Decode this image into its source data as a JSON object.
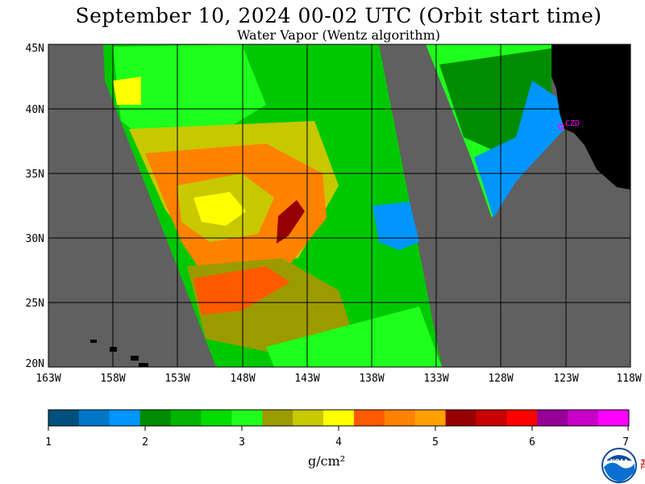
{
  "title": "September 10, 2024  00-02 UTC  (Orbit start time)",
  "subtitle": "Water Vapor (Wentz algorithm)",
  "latitude_labels": [
    "45N",
    "40N",
    "35N",
    "30N",
    "25N",
    "20N"
  ],
  "longitude_labels": [
    "163W",
    "158W",
    "153W",
    "148W",
    "143W",
    "138W",
    "133W",
    "128W",
    "123W",
    "118W"
  ],
  "station_label": "CZD",
  "colorbar": {
    "ticks": [
      "1",
      "2",
      "3",
      "4",
      "5",
      "6",
      "7"
    ],
    "unit": "g/cm²",
    "colors": [
      "#00507d",
      "#0078c8",
      "#0095ff",
      "#008c00",
      "#00b400",
      "#00dc00",
      "#1eff1e",
      "#9b9b00",
      "#c8c800",
      "#ffff00",
      "#ff5a00",
      "#ff8200",
      "#ffa000",
      "#960000",
      "#c80000",
      "#ff0000",
      "#960096",
      "#c800c8",
      "#ff00ff"
    ]
  },
  "colors": {
    "land": "#000000",
    "no_data": "#606060",
    "grid": "#000000",
    "station": "#ff00ff"
  },
  "logo_text": "NOAA",
  "logo_side_text": "PSL"
}
